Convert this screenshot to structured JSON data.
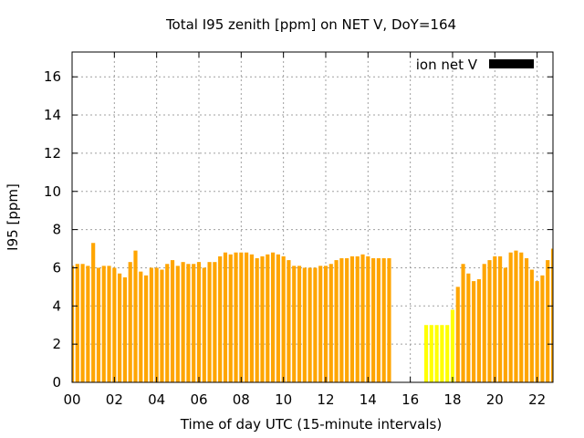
{
  "chart_data": {
    "type": "bar",
    "title": "Total I95 zenith [ppm] on NET V, DoY=164",
    "xlabel": "Time of day UTC (15-minute intervals)",
    "ylabel": "I95 [ppm]",
    "xlim": [
      0,
      22.75
    ],
    "ylim": [
      0,
      17.3
    ],
    "x_ticks": [
      "00",
      "02",
      "04",
      "06",
      "08",
      "10",
      "12",
      "14",
      "16",
      "18",
      "20",
      "22"
    ],
    "y_ticks": [
      "0",
      "2",
      "4",
      "6",
      "8",
      "10",
      "12",
      "14",
      "16"
    ],
    "grid": true,
    "legend": {
      "label": "ion net V",
      "placement": "top-right",
      "color": "#000000"
    },
    "bar_width_hours": 0.18,
    "colors": {
      "normal": "#ffa500",
      "highlight": "#ffff00"
    },
    "series": [
      {
        "x": [
          0.0,
          0.25,
          0.5,
          0.75,
          1.0,
          1.25,
          1.5,
          1.75,
          2.0,
          2.25,
          2.5,
          2.75,
          3.0,
          3.25,
          3.5,
          3.75,
          4.0,
          4.25,
          4.5,
          4.75,
          5.0,
          5.25,
          5.5,
          5.75,
          6.0,
          6.25,
          6.5,
          6.75,
          7.0,
          7.25,
          7.5,
          7.75,
          8.0,
          8.25,
          8.5,
          8.75,
          9.0,
          9.25,
          9.5,
          9.75,
          10.0,
          10.25,
          10.5,
          10.75,
          11.0,
          11.25,
          11.5,
          11.75,
          12.0,
          12.25,
          12.5,
          12.75,
          13.0,
          13.25,
          13.5,
          13.75,
          14.0,
          14.25,
          14.5,
          14.75,
          15.0,
          18.25,
          18.5,
          18.75,
          19.0,
          19.25,
          19.5,
          19.75,
          20.0,
          20.25,
          20.5,
          20.75,
          21.0,
          21.25,
          21.5,
          21.75,
          22.0,
          22.25,
          22.5,
          22.75
        ],
        "values": [
          6.1,
          6.2,
          6.2,
          6.1,
          7.3,
          6.0,
          6.1,
          6.1,
          6.0,
          5.7,
          5.5,
          6.3,
          6.9,
          5.8,
          5.6,
          6.0,
          6.0,
          5.9,
          6.2,
          6.4,
          6.1,
          6.3,
          6.2,
          6.2,
          6.3,
          6.0,
          6.3,
          6.3,
          6.6,
          6.8,
          6.7,
          6.8,
          6.8,
          6.8,
          6.7,
          6.5,
          6.6,
          6.7,
          6.8,
          6.7,
          6.6,
          6.4,
          6.1,
          6.1,
          6.0,
          6.0,
          6.0,
          6.1,
          6.1,
          6.2,
          6.4,
          6.5,
          6.5,
          6.6,
          6.6,
          6.7,
          6.6,
          6.5,
          6.5,
          6.5,
          6.5,
          5.0,
          6.2,
          5.7,
          5.3,
          5.4,
          6.2,
          6.4,
          6.6,
          6.6,
          6.0,
          6.8,
          6.9,
          6.8,
          6.5,
          5.9,
          5.3,
          5.6,
          6.4,
          7.0
        ]
      },
      {
        "x": [
          16.75,
          17.0,
          17.25,
          17.5,
          17.75,
          18.0
        ],
        "values": [
          3.0,
          3.0,
          3.0,
          3.0,
          3.0,
          3.8
        ]
      }
    ]
  }
}
